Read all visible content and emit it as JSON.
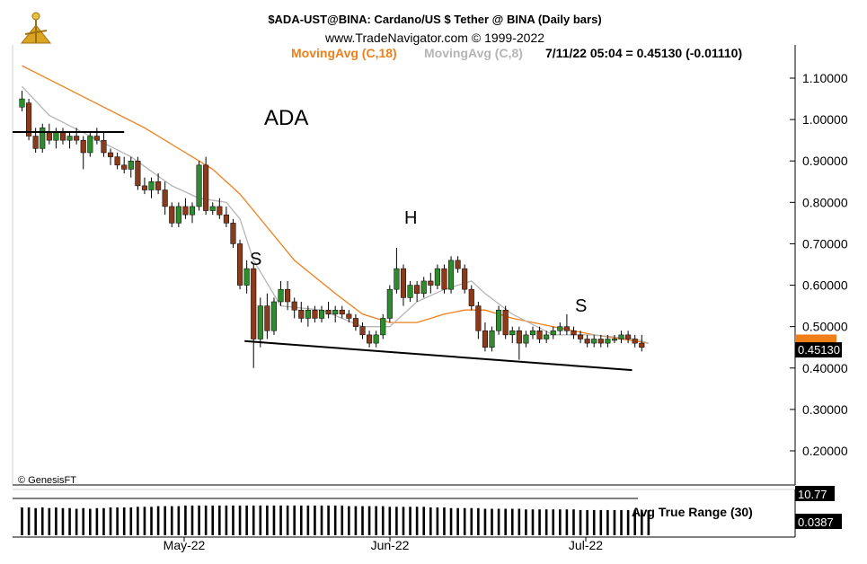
{
  "header": {
    "title_line": "$ADA-UST@BINA:  Cardano/US $ Tether @ BINA  (Daily bars)",
    "copyright_line": "www.TradeNavigator.com © 1999-2022",
    "ma18_label": "MovingAvg (C,18)",
    "ma8_label": "MovingAvg (C,8)",
    "quote_line": "7/11/22 05:04 = 0.45130 (-0.01110)"
  },
  "annotations": {
    "ticker": "ADA",
    "left_shoulder": "S",
    "head": "H",
    "right_shoulder": "S",
    "watermark": "© GenesisFT"
  },
  "indicator": {
    "label": "Avg True Range (30)",
    "top_value": "10.77",
    "last_value": "0.0387"
  },
  "colors": {
    "up_candle": "#2e8b2e",
    "down_candle": "#8b3a1a",
    "ma18": "#f07f1a",
    "ma8": "#b5b5b5",
    "price_box": "#000000",
    "ma_box": "#f07f1a"
  },
  "chart_data": {
    "type": "candlestick",
    "title": "$ADA-UST@BINA:  Cardano/US $ Tether @ BINA  (Daily bars)",
    "ylim": [
      0.1,
      1.15
    ],
    "y_ticks": [
      "1.10000",
      "1.00000",
      "0.90000",
      "0.80000",
      "0.70000",
      "0.60000",
      "0.50000",
      "0.40000",
      "0.30000",
      "0.20000"
    ],
    "x_ticks": [
      "May-22",
      "Jun-22",
      "Jul-22"
    ],
    "last_price_label": "0.45130",
    "ohlc": [
      [
        1.03,
        1.07,
        1.02,
        1.05
      ],
      [
        1.04,
        1.05,
        0.95,
        0.96
      ],
      [
        0.96,
        0.98,
        0.92,
        0.93
      ],
      [
        0.93,
        0.99,
        0.92,
        0.98
      ],
      [
        0.97,
        0.99,
        0.94,
        0.95
      ],
      [
        0.95,
        0.98,
        0.93,
        0.97
      ],
      [
        0.97,
        0.98,
        0.94,
        0.95
      ],
      [
        0.95,
        0.97,
        0.93,
        0.96
      ],
      [
        0.96,
        0.98,
        0.94,
        0.95
      ],
      [
        0.95,
        0.96,
        0.88,
        0.92
      ],
      [
        0.92,
        0.97,
        0.91,
        0.96
      ],
      [
        0.96,
        0.98,
        0.94,
        0.95
      ],
      [
        0.95,
        0.97,
        0.91,
        0.92
      ],
      [
        0.92,
        0.93,
        0.89,
        0.91
      ],
      [
        0.91,
        0.92,
        0.88,
        0.89
      ],
      [
        0.89,
        0.91,
        0.87,
        0.88
      ],
      [
        0.88,
        0.91,
        0.86,
        0.9
      ],
      [
        0.9,
        0.91,
        0.83,
        0.84
      ],
      [
        0.84,
        0.86,
        0.82,
        0.83
      ],
      [
        0.83,
        0.86,
        0.81,
        0.85
      ],
      [
        0.85,
        0.87,
        0.82,
        0.83
      ],
      [
        0.83,
        0.85,
        0.77,
        0.79
      ],
      [
        0.79,
        0.8,
        0.74,
        0.75
      ],
      [
        0.75,
        0.8,
        0.74,
        0.79
      ],
      [
        0.79,
        0.81,
        0.76,
        0.77
      ],
      [
        0.77,
        0.8,
        0.75,
        0.79
      ],
      [
        0.79,
        0.9,
        0.78,
        0.89
      ],
      [
        0.89,
        0.91,
        0.77,
        0.78
      ],
      [
        0.78,
        0.8,
        0.77,
        0.79
      ],
      [
        0.79,
        0.81,
        0.76,
        0.77
      ],
      [
        0.77,
        0.79,
        0.74,
        0.75
      ],
      [
        0.75,
        0.76,
        0.69,
        0.7
      ],
      [
        0.7,
        0.71,
        0.59,
        0.6
      ],
      [
        0.6,
        0.66,
        0.58,
        0.64
      ],
      [
        0.64,
        0.65,
        0.4,
        0.47
      ],
      [
        0.47,
        0.57,
        0.45,
        0.55
      ],
      [
        0.55,
        0.58,
        0.47,
        0.49
      ],
      [
        0.49,
        0.57,
        0.48,
        0.56
      ],
      [
        0.56,
        0.61,
        0.55,
        0.59
      ],
      [
        0.59,
        0.61,
        0.54,
        0.56
      ],
      [
        0.56,
        0.57,
        0.52,
        0.54
      ],
      [
        0.54,
        0.56,
        0.51,
        0.52
      ],
      [
        0.52,
        0.55,
        0.5,
        0.54
      ],
      [
        0.54,
        0.55,
        0.51,
        0.52
      ],
      [
        0.52,
        0.55,
        0.51,
        0.54
      ],
      [
        0.54,
        0.56,
        0.52,
        0.53
      ],
      [
        0.53,
        0.55,
        0.51,
        0.54
      ],
      [
        0.54,
        0.55,
        0.52,
        0.53
      ],
      [
        0.53,
        0.54,
        0.51,
        0.52
      ],
      [
        0.52,
        0.53,
        0.49,
        0.5
      ],
      [
        0.5,
        0.51,
        0.47,
        0.48
      ],
      [
        0.48,
        0.49,
        0.45,
        0.46
      ],
      [
        0.46,
        0.49,
        0.45,
        0.48
      ],
      [
        0.48,
        0.53,
        0.47,
        0.52
      ],
      [
        0.52,
        0.6,
        0.51,
        0.59
      ],
      [
        0.59,
        0.69,
        0.58,
        0.64
      ],
      [
        0.64,
        0.65,
        0.55,
        0.57
      ],
      [
        0.57,
        0.61,
        0.56,
        0.6
      ],
      [
        0.6,
        0.61,
        0.56,
        0.58
      ],
      [
        0.58,
        0.62,
        0.57,
        0.61
      ],
      [
        0.61,
        0.63,
        0.58,
        0.6
      ],
      [
        0.6,
        0.65,
        0.59,
        0.64
      ],
      [
        0.64,
        0.65,
        0.58,
        0.59
      ],
      [
        0.59,
        0.67,
        0.58,
        0.66
      ],
      [
        0.66,
        0.67,
        0.63,
        0.64
      ],
      [
        0.64,
        0.65,
        0.58,
        0.59
      ],
      [
        0.59,
        0.6,
        0.54,
        0.55
      ],
      [
        0.55,
        0.56,
        0.47,
        0.49
      ],
      [
        0.49,
        0.51,
        0.44,
        0.45
      ],
      [
        0.45,
        0.5,
        0.44,
        0.49
      ],
      [
        0.49,
        0.55,
        0.48,
        0.54
      ],
      [
        0.54,
        0.55,
        0.47,
        0.48
      ],
      [
        0.48,
        0.5,
        0.46,
        0.49
      ],
      [
        0.49,
        0.5,
        0.42,
        0.46
      ],
      [
        0.46,
        0.49,
        0.45,
        0.48
      ],
      [
        0.48,
        0.5,
        0.47,
        0.49
      ],
      [
        0.49,
        0.5,
        0.46,
        0.47
      ],
      [
        0.47,
        0.49,
        0.46,
        0.48
      ],
      [
        0.48,
        0.5,
        0.47,
        0.49
      ],
      [
        0.49,
        0.51,
        0.48,
        0.5
      ],
      [
        0.5,
        0.53,
        0.48,
        0.49
      ],
      [
        0.49,
        0.5,
        0.47,
        0.48
      ],
      [
        0.48,
        0.49,
        0.46,
        0.47
      ],
      [
        0.47,
        0.48,
        0.45,
        0.46
      ],
      [
        0.46,
        0.48,
        0.45,
        0.47
      ],
      [
        0.47,
        0.48,
        0.45,
        0.46
      ],
      [
        0.46,
        0.48,
        0.45,
        0.47
      ],
      [
        0.47,
        0.48,
        0.46,
        0.47
      ],
      [
        0.47,
        0.49,
        0.46,
        0.48
      ],
      [
        0.48,
        0.49,
        0.46,
        0.47
      ],
      [
        0.47,
        0.48,
        0.45,
        0.46
      ],
      [
        0.46,
        0.48,
        0.44,
        0.45
      ]
    ],
    "ma18_path": [
      [
        0,
        1.13
      ],
      [
        6,
        1.08
      ],
      [
        12,
        1.03
      ],
      [
        18,
        0.98
      ],
      [
        24,
        0.92
      ],
      [
        28,
        0.88
      ],
      [
        32,
        0.82
      ],
      [
        36,
        0.74
      ],
      [
        40,
        0.66
      ],
      [
        46,
        0.58
      ],
      [
        50,
        0.53
      ],
      [
        54,
        0.51
      ],
      [
        58,
        0.51
      ],
      [
        62,
        0.53
      ],
      [
        65,
        0.54
      ],
      [
        68,
        0.54
      ],
      [
        72,
        0.52
      ],
      [
        78,
        0.5
      ],
      [
        84,
        0.48
      ],
      [
        88,
        0.47
      ],
      [
        92,
        0.46
      ]
    ],
    "ma8_path": [
      [
        0,
        1.08
      ],
      [
        4,
        1.01
      ],
      [
        10,
        0.96
      ],
      [
        16,
        0.91
      ],
      [
        22,
        0.84
      ],
      [
        26,
        0.81
      ],
      [
        30,
        0.8
      ],
      [
        32,
        0.76
      ],
      [
        34,
        0.66
      ],
      [
        38,
        0.55
      ],
      [
        44,
        0.54
      ],
      [
        50,
        0.5
      ],
      [
        54,
        0.5
      ],
      [
        58,
        0.56
      ],
      [
        62,
        0.59
      ],
      [
        66,
        0.61
      ],
      [
        68,
        0.58
      ],
      [
        72,
        0.53
      ],
      [
        78,
        0.48
      ],
      [
        84,
        0.48
      ],
      [
        90,
        0.47
      ],
      [
        92,
        0.46
      ]
    ],
    "trendlines": [
      {
        "name": "early-support",
        "from": [
          0,
          0.97
        ],
        "to": [
          15,
          0.97
        ]
      },
      {
        "name": "neckline",
        "from": [
          34,
          0.465
        ],
        "to": [
          88,
          0.395
        ]
      }
    ],
    "atr_series": [
      0.043,
      0.043,
      0.042,
      0.043,
      0.042,
      0.043,
      0.042,
      0.042,
      0.041,
      0.042,
      0.041,
      0.042,
      0.042,
      0.043,
      0.043,
      0.043,
      0.043,
      0.044,
      0.044,
      0.044,
      0.045,
      0.045,
      0.045,
      0.045,
      0.046,
      0.046,
      0.046,
      0.046,
      0.046,
      0.046,
      0.046,
      0.046,
      0.046,
      0.046,
      0.046,
      0.046,
      0.046,
      0.046,
      0.046,
      0.046,
      0.046,
      0.046,
      0.046,
      0.046,
      0.046,
      0.046,
      0.046,
      0.046,
      0.045,
      0.045,
      0.045,
      0.045,
      0.045,
      0.045,
      0.044,
      0.044,
      0.044,
      0.044,
      0.044,
      0.044,
      0.043,
      0.043,
      0.043,
      0.042,
      0.042,
      0.042,
      0.042,
      0.042,
      0.041,
      0.041,
      0.041,
      0.041,
      0.041,
      0.041,
      0.04,
      0.04,
      0.04,
      0.04,
      0.04,
      0.04,
      0.04,
      0.04,
      0.039,
      0.039,
      0.039,
      0.039,
      0.039,
      0.039,
      0.039,
      0.039,
      0.0387,
      0.0387,
      0.0387
    ],
    "atr_range": [
      0,
      0.05
    ]
  }
}
